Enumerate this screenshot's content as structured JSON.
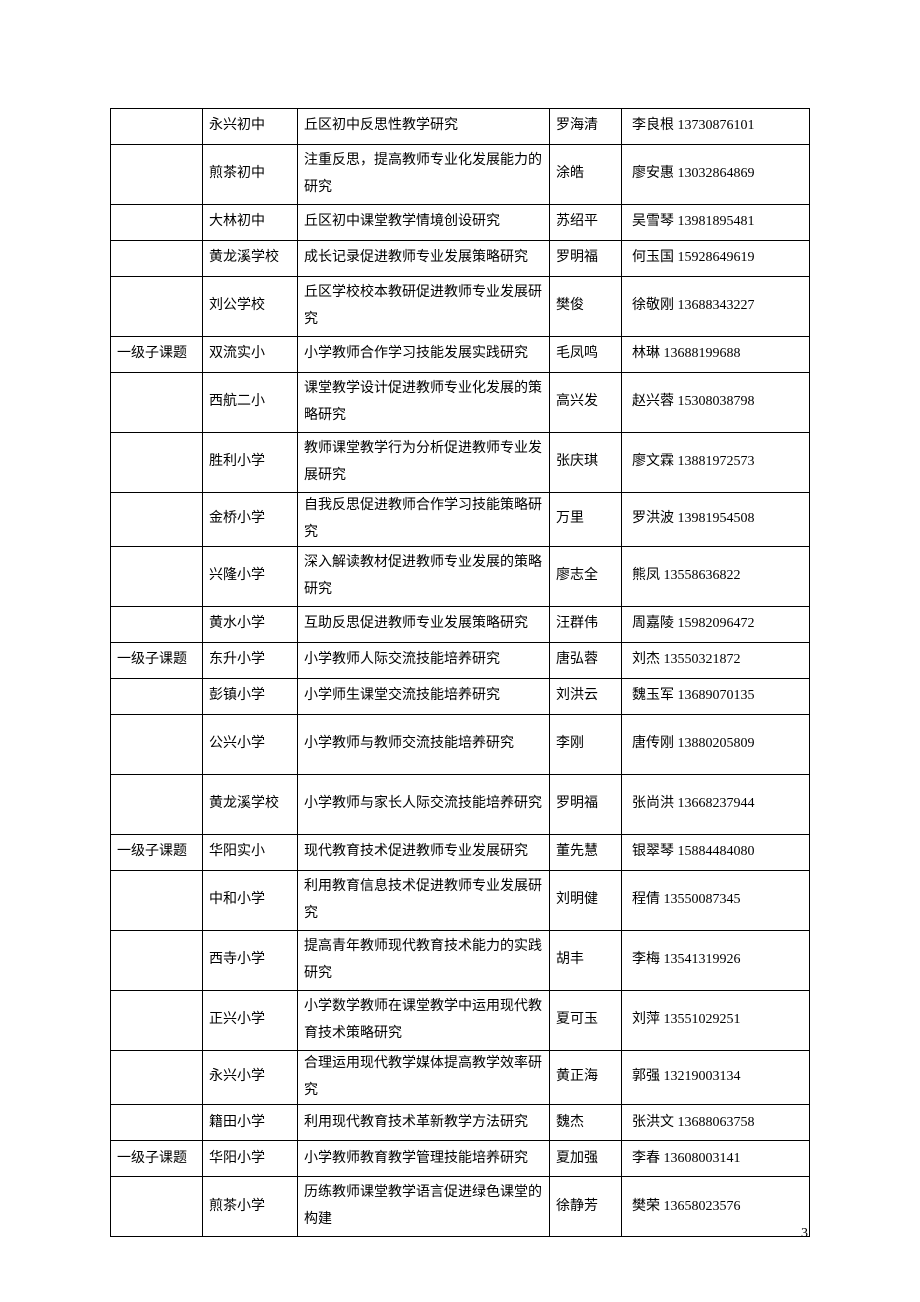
{
  "page_number": "3",
  "table": {
    "rows": [
      {
        "level": "",
        "school": "永兴初中",
        "topic": "丘区初中反思性教学研究",
        "leader": "罗海清",
        "contact": "李良根 13730876101",
        "h": "single"
      },
      {
        "level": "",
        "school": "煎茶初中",
        "topic": "注重反思，提高教师专业化发展能力的研究",
        "leader": "涂皓",
        "contact": "廖安惠 13032864869",
        "h": "double"
      },
      {
        "level": "",
        "school": "大林初中",
        "topic": "丘区初中课堂教学情境创设研究",
        "leader": "苏绍平",
        "contact": "吴雪琴 13981895481",
        "h": "single"
      },
      {
        "level": "",
        "school": "黄龙溪学校",
        "topic": "成长记录促进教师专业发展策略研究",
        "leader": "罗明福",
        "contact": "何玉国 15928649619",
        "h": "single"
      },
      {
        "level": "",
        "school": "刘公学校",
        "topic": "丘区学校校本教研促进教师专业发展研究",
        "leader": "樊俊",
        "contact": "徐敬刚 13688343227",
        "h": "double"
      },
      {
        "level": "一级子课题",
        "school": "双流实小",
        "topic": "小学教师合作学习技能发展实践研究",
        "leader": "毛凤鸣",
        "contact": "林琳 13688199688",
        "h": "single"
      },
      {
        "level": "",
        "school": "西航二小",
        "topic": "课堂教学设计促进教师专业化发展的策略研究",
        "leader": "高兴发",
        "contact": "赵兴蓉 15308038798",
        "h": "double"
      },
      {
        "level": "",
        "school": "胜利小学",
        "topic": "教师课堂教学行为分析促进教师专业发展研究",
        "leader": "张庆琪",
        "contact": "廖文霖 13881972573",
        "h": "double"
      },
      {
        "level": "",
        "school": "金桥小学",
        "topic": "自我反思促进教师合作学习技能策略研究",
        "leader": "万里",
        "contact": "罗洪波 13981954508",
        "h": "single"
      },
      {
        "level": "",
        "school": "兴隆小学",
        "topic": "深入解读教材促进教师专业发展的策略研究",
        "leader": "廖志全",
        "contact": "熊凤 13558636822",
        "h": "double"
      },
      {
        "level": "",
        "school": "黄水小学",
        "topic": "互助反思促进教师专业发展策略研究",
        "leader": "汪群伟",
        "contact": "周嘉陵 15982096472",
        "h": "single"
      },
      {
        "level": "一级子课题",
        "school": "东升小学",
        "topic": "小学教师人际交流技能培养研究",
        "leader": "唐弘蓉",
        "contact": "刘杰 13550321872",
        "h": "single"
      },
      {
        "level": "",
        "school": "彭镇小学",
        "topic": "小学师生课堂交流技能培养研究",
        "leader": "刘洪云",
        "contact": "魏玉军 13689070135",
        "h": "single"
      },
      {
        "level": "",
        "school": "公兴小学",
        "topic": "小学教师与教师交流技能培养研究",
        "leader": "李刚",
        "contact": "唐传刚 13880205809",
        "h": "double"
      },
      {
        "level": "",
        "school": "黄龙溪学校",
        "topic": "小学教师与家长人际交流技能培养研究",
        "leader": "罗明福",
        "contact": "张尚洪 13668237944",
        "h": "double"
      },
      {
        "level": "一级子课题",
        "school": "华阳实小",
        "topic": "现代教育技术促进教师专业发展研究",
        "leader": "董先慧",
        "contact": "银翠琴 15884484080",
        "h": "single"
      },
      {
        "level": "",
        "school": "中和小学",
        "topic": "利用教育信息技术促进教师专业发展研究",
        "leader": "刘明健",
        "contact": "程倩 13550087345",
        "h": "double"
      },
      {
        "level": "",
        "school": "西寺小学",
        "topic": "提高青年教师现代教育技术能力的实践研究",
        "leader": "胡丰",
        "contact": "李梅 13541319926",
        "h": "double"
      },
      {
        "level": "",
        "school": "正兴小学",
        "topic": "小学数学教师在课堂教学中运用现代教育技术策略研究",
        "leader": "夏可玉",
        "contact": "刘萍 13551029251",
        "h": "double"
      },
      {
        "level": "",
        "school": "永兴小学",
        "topic": "合理运用现代教学媒体提高教学效率研究",
        "leader": "黄正海",
        "contact": "郭强 13219003134",
        "h": "single"
      },
      {
        "level": "",
        "school": "籍田小学",
        "topic": "利用现代教育技术革新教学方法研究",
        "leader": "魏杰",
        "contact": "张洪文 13688063758",
        "h": "single"
      },
      {
        "level": "一级子课题",
        "school": "华阳小学",
        "topic": "小学教师教育教学管理技能培养研究",
        "leader": "夏加强",
        "contact": "李春 13608003141",
        "h": "single"
      },
      {
        "level": "",
        "school": "煎茶小学",
        "topic": "历练教师课堂教学语言促进绿色课堂的构建",
        "leader": "徐静芳",
        "contact": "樊荣 13658023576",
        "h": "double"
      }
    ]
  }
}
